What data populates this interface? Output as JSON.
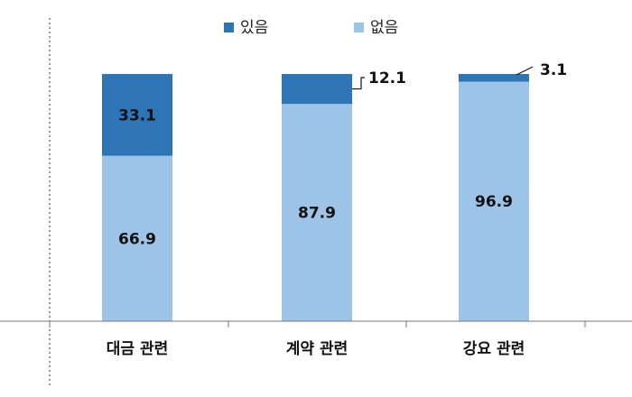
{
  "chart_data": {
    "type": "bar",
    "stacked": true,
    "orientation": "vertical",
    "categories": [
      "대금 관련",
      "계약 관련",
      "강요 관련"
    ],
    "series": [
      {
        "name": "있음",
        "values": [
          33.1,
          12.1,
          3.1
        ],
        "color": "#2e75b6"
      },
      {
        "name": "없음",
        "values": [
          66.9,
          87.9,
          96.9
        ],
        "color": "#9dc3e6"
      }
    ],
    "ylim": [
      0,
      100
    ],
    "legend_position": "top-center",
    "grid": false,
    "title": "",
    "xlabel": "",
    "ylabel": ""
  }
}
